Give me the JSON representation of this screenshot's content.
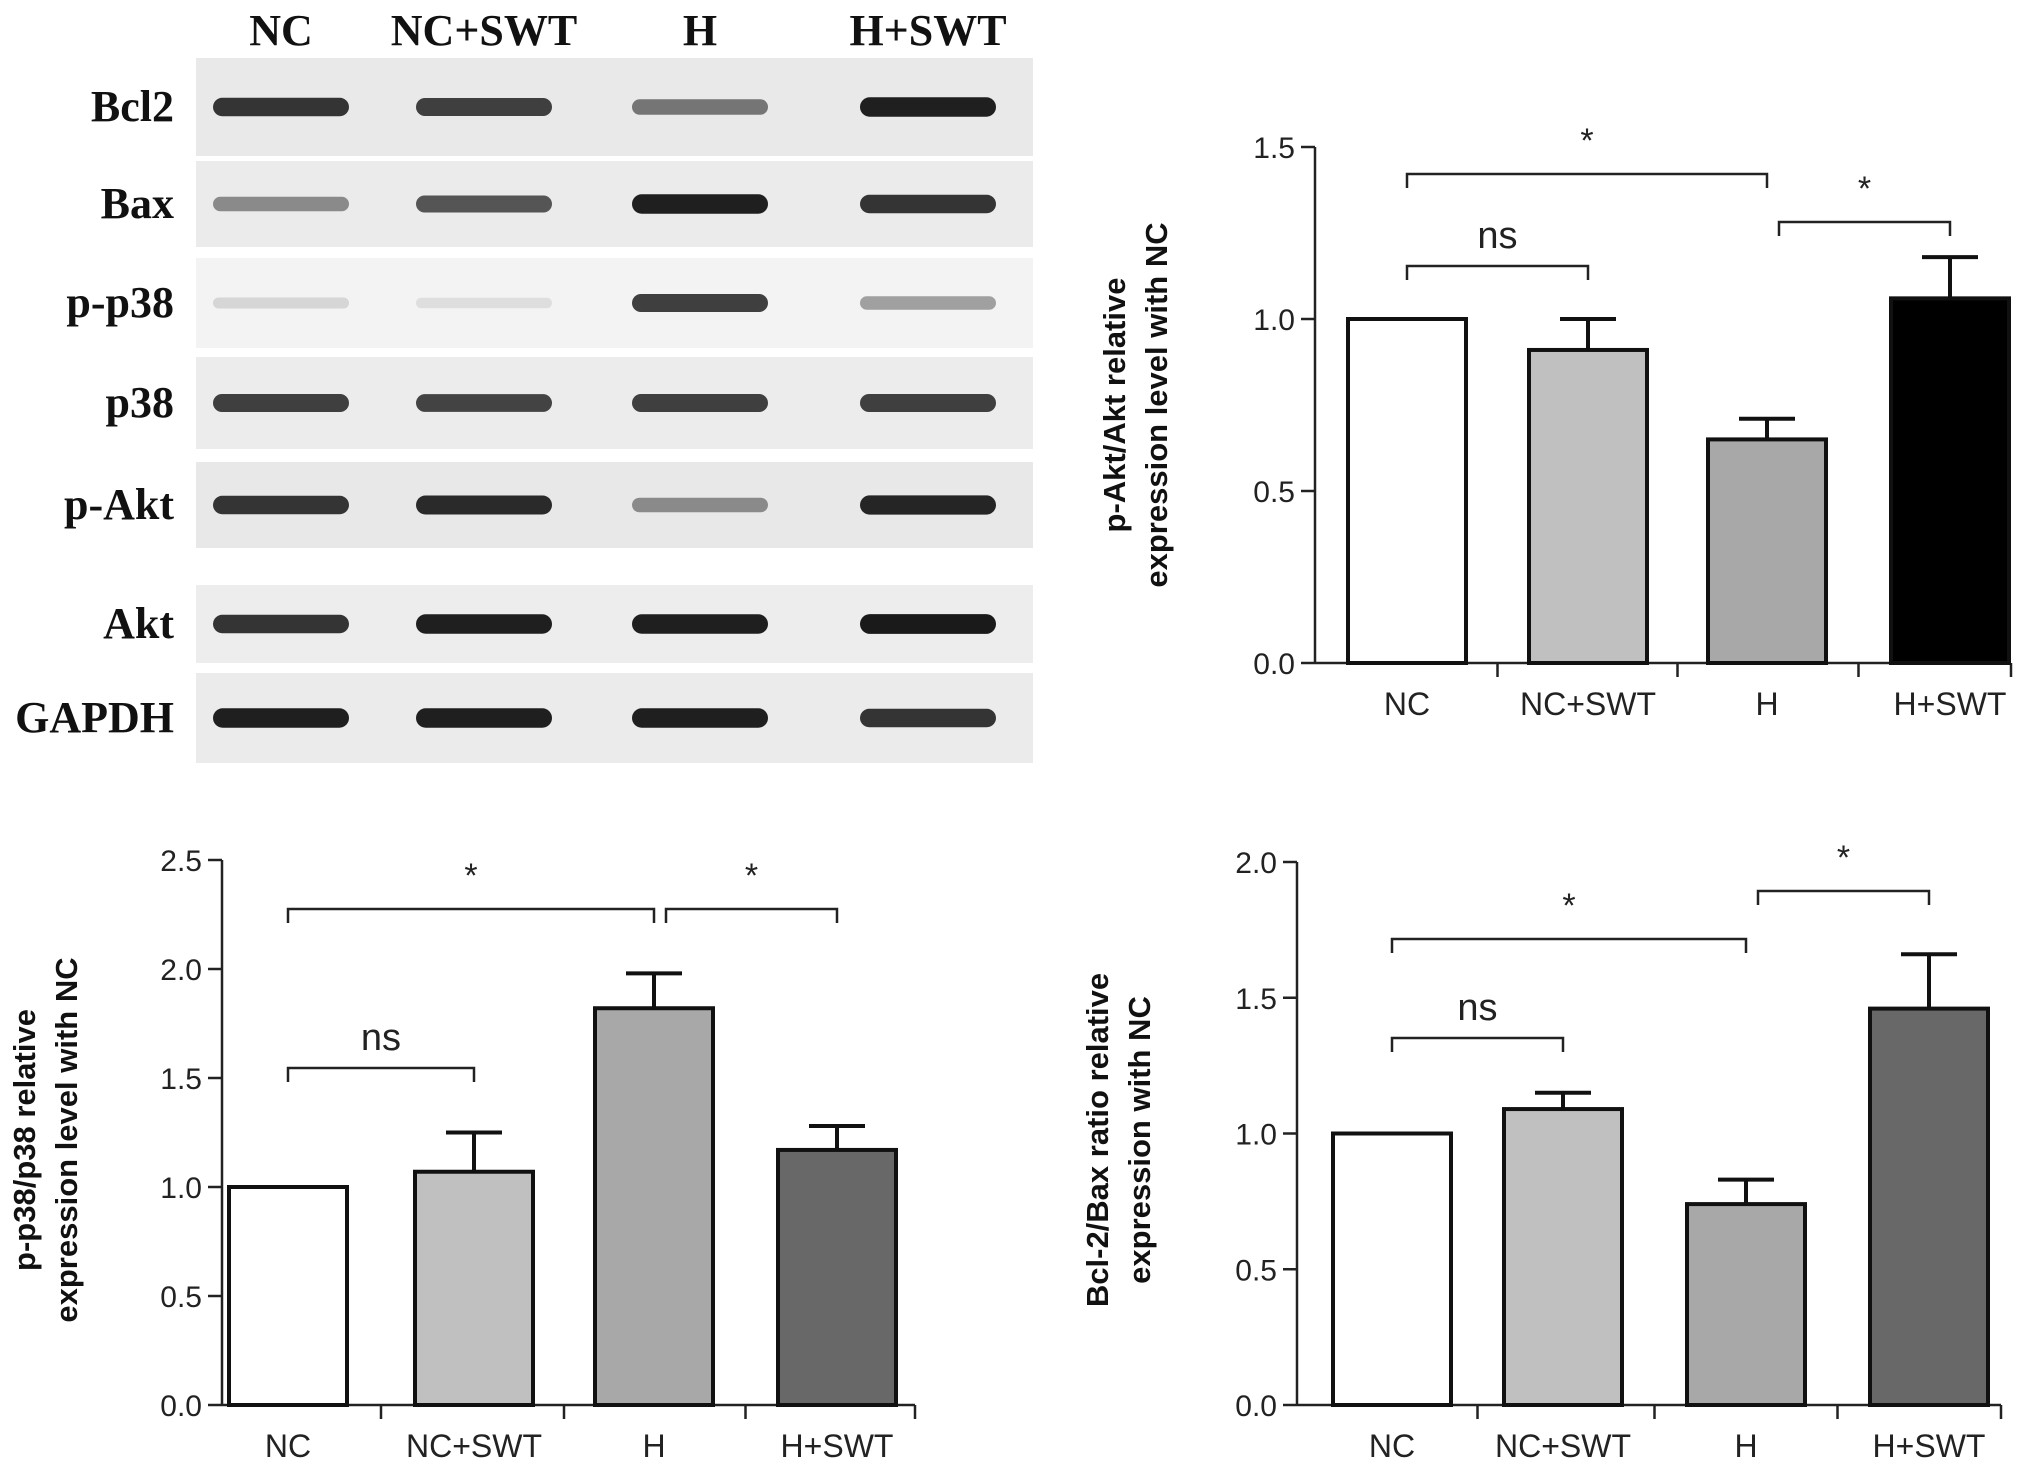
{
  "blot": {
    "lanes": [
      "NC",
      "NC+SWT",
      "H",
      "H+SWT"
    ],
    "rows": [
      {
        "label": "Bcl2",
        "bands": [
          0.85,
          0.8,
          0.55,
          0.95
        ],
        "bg": "#e9e9e9"
      },
      {
        "label": "Bax",
        "bands": [
          0.45,
          0.7,
          0.95,
          0.85
        ],
        "bg": "#ebebeb"
      },
      {
        "label": "p-p38",
        "bands": [
          0.1,
          0.06,
          0.8,
          0.35
        ],
        "bg": "#f3f3f3"
      },
      {
        "label": "p38",
        "bands": [
          0.8,
          0.78,
          0.8,
          0.8
        ],
        "bg": "#ececec"
      },
      {
        "label": "p-Akt",
        "bands": [
          0.85,
          0.9,
          0.45,
          0.92
        ],
        "bg": "#e8e8e8"
      },
      {
        "label": "Akt",
        "bands": [
          0.85,
          0.95,
          0.95,
          0.97
        ],
        "bg": "#ededed"
      },
      {
        "label": "GAPDH",
        "bands": [
          0.95,
          0.95,
          0.95,
          0.85
        ],
        "bg": "#ebebeb"
      }
    ]
  },
  "chart_data": [
    {
      "id": "pakt",
      "type": "bar",
      "categories": [
        "NC",
        "NC+SWT",
        "H",
        "H+SWT"
      ],
      "values": [
        1.0,
        0.91,
        0.65,
        1.06
      ],
      "errors": [
        0,
        0.09,
        0.06,
        0.12
      ],
      "colors": [
        "#ffffff",
        "#c0c0c0",
        "#a8a8a8",
        "#000000"
      ],
      "ylabel_lines": [
        "p-Akt/Akt relative",
        "expression level with NC"
      ],
      "ylim": [
        0,
        1.5
      ],
      "yticks": [
        "0.0",
        "0.5",
        "1.0",
        "1.5"
      ],
      "sig": [
        {
          "from": 0,
          "to": 1,
          "label": "ns"
        },
        {
          "from": 0,
          "to": 2,
          "label": "*"
        },
        {
          "from": 2,
          "to": 3,
          "label": "*"
        }
      ]
    },
    {
      "id": "pp38",
      "type": "bar",
      "categories": [
        "NC",
        "NC+SWT",
        "H",
        "H+SWT"
      ],
      "values": [
        1.0,
        1.07,
        1.82,
        1.17
      ],
      "errors": [
        0,
        0.18,
        0.16,
        0.11
      ],
      "colors": [
        "#ffffff",
        "#c0c0c0",
        "#a8a8a8",
        "#686868"
      ],
      "ylabel_lines": [
        "p-p38/p38 relative",
        "expression level with NC"
      ],
      "ylim": [
        0,
        2.5
      ],
      "yticks": [
        "0.0",
        "0.5",
        "1.0",
        "1.5",
        "2.0",
        "2.5"
      ],
      "sig": [
        {
          "from": 0,
          "to": 1,
          "label": "ns"
        },
        {
          "from": 0,
          "to": 2,
          "label": "*"
        },
        {
          "from": 2,
          "to": 3,
          "label": "*"
        }
      ]
    },
    {
      "id": "bcl",
      "type": "bar",
      "categories": [
        "NC",
        "NC+SWT",
        "H",
        "H+SWT"
      ],
      "values": [
        1.0,
        1.09,
        0.74,
        1.46
      ],
      "errors": [
        0,
        0.06,
        0.09,
        0.2
      ],
      "colors": [
        "#ffffff",
        "#c0c0c0",
        "#a8a8a8",
        "#686868"
      ],
      "ylabel_lines": [
        "Bcl-2/Bax  ratio relative",
        "expression with NC"
      ],
      "ylim": [
        0,
        2.0
      ],
      "yticks": [
        "0.0",
        "0.5",
        "1.0",
        "1.5",
        "2.0"
      ],
      "sig": [
        {
          "from": 0,
          "to": 1,
          "label": "ns"
        },
        {
          "from": 0,
          "to": 2,
          "label": "*"
        },
        {
          "from": 2,
          "to": 3,
          "label": "*"
        }
      ]
    }
  ]
}
